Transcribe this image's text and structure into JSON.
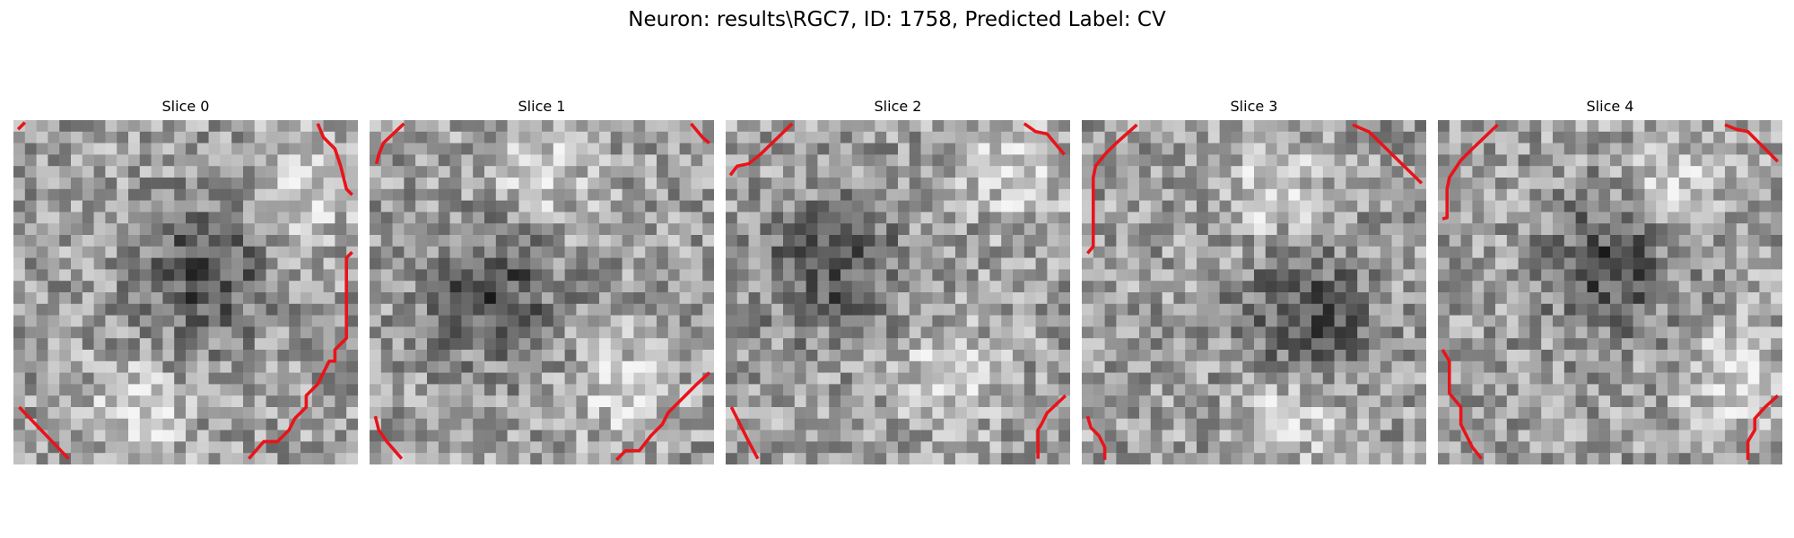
{
  "figure": {
    "title": "Neuron: results\\RGC7, ID: 1758, Predicted Label: CV"
  },
  "colors": {
    "contour": "#e8141a",
    "colormap": "gray"
  },
  "panels": [
    {
      "title": "Slice 0",
      "dark_center": [
        0.55,
        0.45
      ],
      "bright": [
        [
          0.35,
          0.85
        ],
        [
          0.85,
          0.2
        ]
      ]
    },
    {
      "title": "Slice 1",
      "dark_center": [
        0.35,
        0.5
      ],
      "bright": [
        [
          0.75,
          0.78
        ],
        [
          0.5,
          0.15
        ]
      ]
    },
    {
      "title": "Slice 2",
      "dark_center": [
        0.3,
        0.42
      ],
      "bright": [
        [
          0.85,
          0.15
        ],
        [
          0.65,
          0.75
        ]
      ]
    },
    {
      "title": "Slice 3",
      "dark_center": [
        0.65,
        0.58
      ],
      "bright": [
        [
          0.55,
          0.2
        ],
        [
          0.6,
          0.85
        ]
      ]
    },
    {
      "title": "Slice 4",
      "dark_center": [
        0.5,
        0.42
      ],
      "bright": [
        [
          0.7,
          0.2
        ],
        [
          0.85,
          0.75
        ]
      ]
    }
  ]
}
